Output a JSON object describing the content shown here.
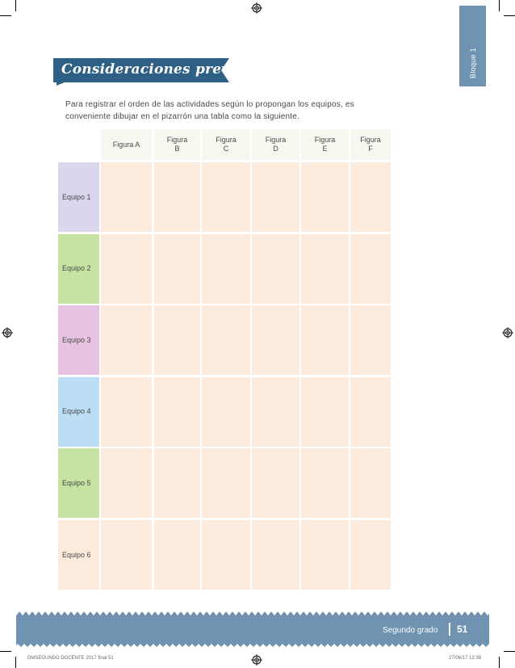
{
  "bloque": {
    "label": "Bloque 1"
  },
  "header": {
    "title": "Consideraciones previas"
  },
  "intro": {
    "text": "Para registrar el orden de las actividades según lo propongan los equipos, es conveniente dibujar en el pizarrón una tabla como la siguiente."
  },
  "table": {
    "columns": [
      "Figura A",
      "Figura B",
      "Figura C",
      "Figura D",
      "Figura E",
      "Figura F"
    ],
    "rows": [
      {
        "label": "Equipo 1",
        "color": "#d9d6ee"
      },
      {
        "label": "Equipo 2",
        "color": "#c6e3a2"
      },
      {
        "label": "Equipo 3",
        "color": "#e8c2e2"
      },
      {
        "label": "Equipo 4",
        "color": "#bcdef5"
      },
      {
        "label": "Equipo 5",
        "color": "#c6e3a2"
      },
      {
        "label": "Equipo 6",
        "color": "#fcebdd"
      }
    ]
  },
  "footer": {
    "grade": "Segundo grado",
    "page": "51"
  },
  "slug": {
    "left": "DMSEGUNDO DOCENTE 2017 final  51",
    "right": "27/06/17  12:38"
  },
  "colors": {
    "accent": "#6f93b1",
    "header_bg": "#2e5f84",
    "cell_bg": "#fcebdd",
    "header_cell_bg": "#f4f8ee"
  }
}
